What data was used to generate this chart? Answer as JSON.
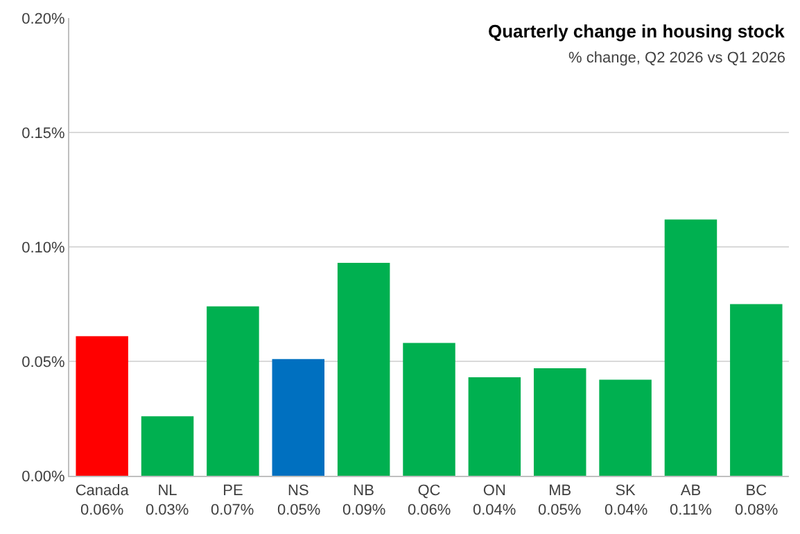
{
  "chart_data": {
    "type": "bar",
    "title": "Quarterly change in housing stock",
    "subtitle": "% change, Q2 2026 vs Q1 2026",
    "categories": [
      "Canada",
      "NL",
      "PE",
      "NS",
      "NB",
      "QC",
      "ON",
      "MB",
      "SK",
      "AB",
      "BC"
    ],
    "values": [
      0.061,
      0.026,
      0.074,
      0.051,
      0.093,
      0.058,
      0.043,
      0.047,
      0.042,
      0.112,
      0.075
    ],
    "colors": [
      "#ff0000",
      "#00b050",
      "#00b050",
      "#0070c0",
      "#00b050",
      "#00b050",
      "#00b050",
      "#00b050",
      "#00b050",
      "#00b050",
      "#00b050"
    ],
    "value_labels": [
      "0.06%",
      "0.03%",
      "0.07%",
      "0.05%",
      "0.09%",
      "0.06%",
      "0.04%",
      "0.05%",
      "0.04%",
      "0.11%",
      "0.08%"
    ],
    "ylim": [
      0,
      0.2
    ],
    "yticks": [
      {
        "value": 0,
        "label": "0.00%"
      },
      {
        "value": 0.05,
        "label": "0.05%"
      },
      {
        "value": 0.1,
        "label": "0.10%"
      },
      {
        "value": 0.15,
        "label": "0.15%"
      },
      {
        "value": 0.2,
        "label": "0.20%"
      }
    ],
    "grid": "y"
  }
}
